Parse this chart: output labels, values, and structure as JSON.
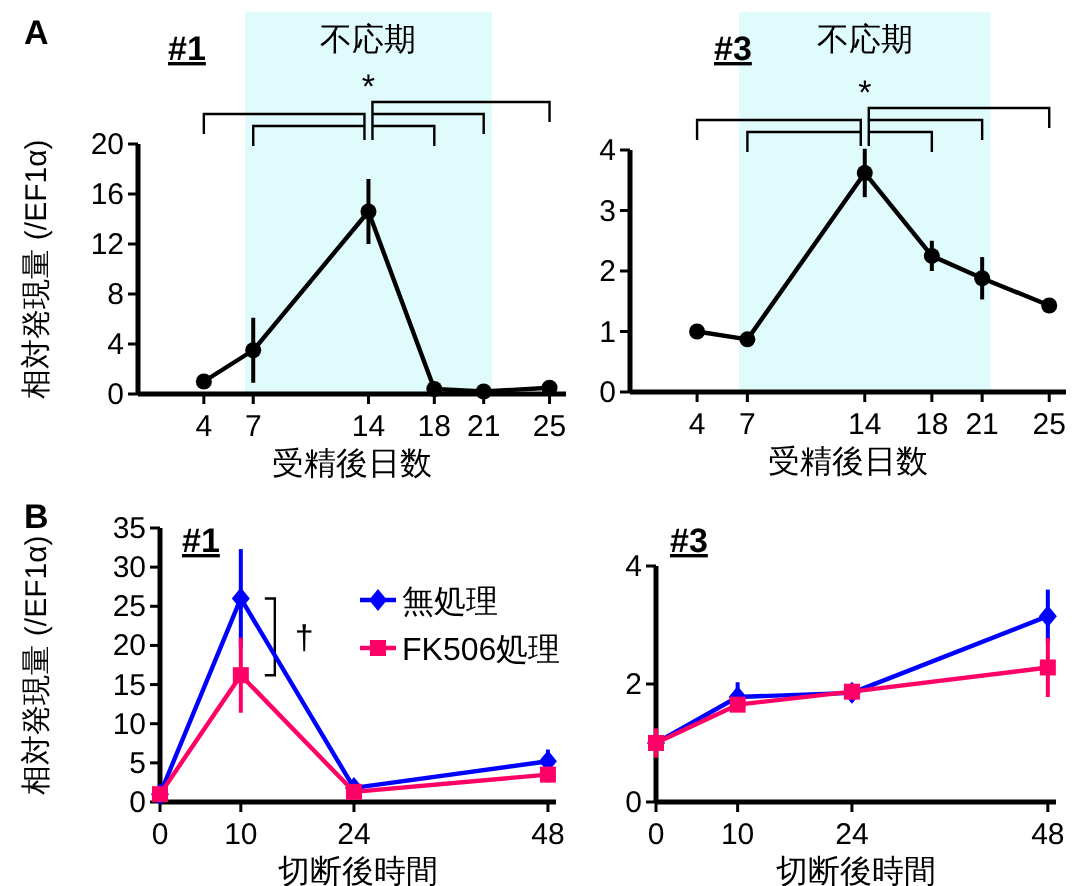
{
  "chart_data": [
    {
      "type": "line",
      "title": "#1",
      "xlabel": "受精後日数",
      "ylabel": "相対発現量 (/EF1α)",
      "x": [
        4,
        7,
        14,
        18,
        21,
        25
      ],
      "xlim": [
        0,
        26
      ],
      "xticks": [
        4,
        7,
        14,
        18,
        21,
        25
      ],
      "ylim": [
        0,
        20
      ],
      "yticks": [
        0,
        4,
        8,
        12,
        16,
        20
      ],
      "marker": "circle",
      "legend": false,
      "series": [
        {
          "color": "#000000",
          "values": [
            1.0,
            3.5,
            14.6,
            0.4,
            0.2,
            0.5
          ],
          "errors": [
            null,
            2.6,
            2.6,
            null,
            null,
            null
          ]
        }
      ],
      "bands": [
        {
          "axis": "x",
          "from": 6.5,
          "to": 21.5,
          "label": "不応期",
          "color": "#e0fbfb"
        }
      ],
      "annotations": [
        "A",
        "*"
      ]
    },
    {
      "type": "line",
      "title": "#3",
      "xlabel": "受精後日数",
      "x": [
        4,
        7,
        14,
        18,
        21,
        25
      ],
      "xlim": [
        0,
        26
      ],
      "xticks": [
        4,
        7,
        14,
        18,
        21,
        25
      ],
      "ylim": [
        0,
        4
      ],
      "yticks": [
        0,
        1,
        2,
        3,
        4
      ],
      "marker": "circle",
      "legend": false,
      "series": [
        {
          "color": "#000000",
          "values": [
            1.0,
            0.87,
            3.62,
            2.25,
            1.88,
            1.43
          ],
          "errors": [
            null,
            null,
            0.4,
            0.25,
            0.35,
            null
          ]
        }
      ],
      "bands": [
        {
          "axis": "x",
          "from": 6.5,
          "to": 21.5,
          "label": "不応期",
          "color": "#e0fbfb"
        }
      ],
      "annotations": [
        "*"
      ]
    },
    {
      "type": "line",
      "title": "#1",
      "xlabel": "切断後時間",
      "ylabel": "相対発現量 (/EF1α)",
      "x": [
        0,
        10,
        24,
        48
      ],
      "xlim": [
        0,
        49
      ],
      "xticks": [
        0,
        10,
        24,
        48
      ],
      "ylim": [
        0,
        35
      ],
      "yticks": [
        0,
        5,
        10,
        15,
        20,
        25,
        30,
        35
      ],
      "legend": "top right",
      "series": [
        {
          "name": "無処理",
          "color": "#0000ff",
          "marker": "diamond",
          "values": [
            1.0,
            26.0,
            1.8,
            5.2
          ],
          "errors": [
            null,
            6.3,
            1.0,
            1.5
          ]
        },
        {
          "name": "FK506処理",
          "color": "#ff0066",
          "marker": "square",
          "values": [
            1.0,
            16.2,
            1.3,
            3.5
          ],
          "errors": [
            null,
            4.8,
            null,
            1.0
          ]
        }
      ],
      "annotations": [
        "B",
        "†"
      ]
    },
    {
      "type": "line",
      "title": "#3",
      "xlabel": "切断後時間",
      "x": [
        0,
        10,
        24,
        48
      ],
      "xlim": [
        0,
        49
      ],
      "xticks": [
        0,
        10,
        24,
        48
      ],
      "ylim": [
        0,
        4
      ],
      "yticks": [
        0,
        2,
        4
      ],
      "legend": false,
      "series": [
        {
          "color": "#0000ff",
          "marker": "diamond",
          "values": [
            1.0,
            1.78,
            1.85,
            3.15
          ],
          "errors": [
            null,
            0.25,
            0.15,
            0.45
          ]
        },
        {
          "color": "#ff0066",
          "marker": "square",
          "values": [
            1.0,
            1.65,
            1.87,
            2.28
          ],
          "errors": [
            0.25,
            null,
            null,
            0.5
          ]
        }
      ]
    }
  ]
}
